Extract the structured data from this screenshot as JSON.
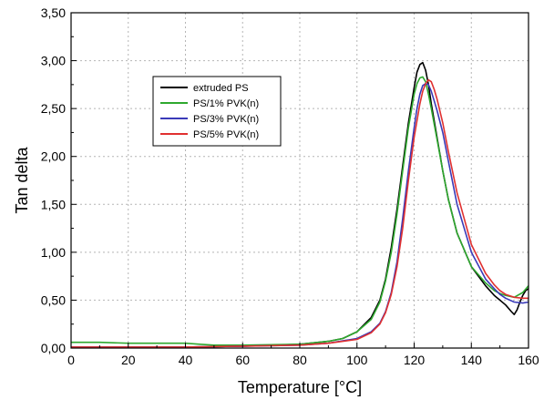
{
  "chart_data": {
    "type": "line",
    "title": "",
    "xlabel": "Temperature [°C]",
    "ylabel": "Tan delta",
    "xlim": [
      0,
      160
    ],
    "ylim": [
      0,
      3.5
    ],
    "x_ticks": [
      "0",
      "20",
      "40",
      "60",
      "80",
      "100",
      "120",
      "140",
      "160"
    ],
    "y_ticks": [
      "0,00",
      "0,50",
      "1,00",
      "1,50",
      "2,00",
      "2,50",
      "3,00",
      "3,50"
    ],
    "grid": true,
    "legend_position": "top-left",
    "series": [
      {
        "name": "extruded PS",
        "color": "#000000",
        "x": [
          0,
          20,
          40,
          60,
          80,
          90,
          95,
          100,
          105,
          108,
          110,
          112,
          114,
          116,
          118,
          120,
          121,
          122,
          123,
          124,
          125,
          126,
          128,
          130,
          132,
          135,
          140,
          145,
          148,
          150,
          152,
          154,
          155,
          156,
          157,
          158,
          159,
          160
        ],
        "y": [
          0.01,
          0.01,
          0.01,
          0.02,
          0.04,
          0.07,
          0.1,
          0.17,
          0.32,
          0.5,
          0.72,
          1.05,
          1.45,
          1.9,
          2.35,
          2.72,
          2.88,
          2.96,
          2.98,
          2.9,
          2.75,
          2.55,
          2.2,
          1.85,
          1.55,
          1.2,
          0.85,
          0.65,
          0.55,
          0.5,
          0.45,
          0.38,
          0.35,
          0.4,
          0.48,
          0.55,
          0.6,
          0.62
        ]
      },
      {
        "name": "PS/1% PVK(n)",
        "color": "#2ea82e",
        "x": [
          0,
          10,
          20,
          30,
          40,
          45,
          50,
          60,
          80,
          90,
          95,
          100,
          105,
          108,
          110,
          112,
          114,
          116,
          118,
          120,
          121,
          122,
          123,
          124,
          125,
          126,
          128,
          130,
          132,
          135,
          140,
          145,
          148,
          150,
          152,
          155,
          158,
          160
        ],
        "y": [
          0.06,
          0.06,
          0.05,
          0.05,
          0.05,
          0.04,
          0.03,
          0.03,
          0.04,
          0.07,
          0.1,
          0.17,
          0.3,
          0.48,
          0.7,
          1.0,
          1.4,
          1.85,
          2.3,
          2.65,
          2.76,
          2.82,
          2.83,
          2.78,
          2.65,
          2.5,
          2.18,
          1.85,
          1.55,
          1.2,
          0.85,
          0.68,
          0.6,
          0.57,
          0.55,
          0.53,
          0.58,
          0.65
        ]
      },
      {
        "name": "PS/3% PVK(n)",
        "color": "#3a3ab8",
        "x": [
          0,
          20,
          40,
          60,
          80,
          90,
          100,
          105,
          108,
          110,
          112,
          114,
          116,
          118,
          120,
          121,
          122,
          123,
          124,
          125,
          126,
          127,
          128,
          130,
          132,
          135,
          140,
          145,
          148,
          150,
          152,
          155,
          158,
          160
        ],
        "y": [
          0.01,
          0.01,
          0.01,
          0.02,
          0.03,
          0.05,
          0.1,
          0.17,
          0.26,
          0.38,
          0.58,
          0.9,
          1.35,
          1.85,
          2.3,
          2.5,
          2.65,
          2.74,
          2.76,
          2.75,
          2.68,
          2.58,
          2.48,
          2.25,
          1.95,
          1.5,
          1.0,
          0.72,
          0.62,
          0.56,
          0.52,
          0.48,
          0.47,
          0.48
        ]
      },
      {
        "name": "PS/5% PVK(n)",
        "color": "#e03030",
        "x": [
          0,
          20,
          40,
          60,
          80,
          90,
          100,
          105,
          108,
          110,
          112,
          114,
          116,
          118,
          120,
          122,
          123,
          124,
          125,
          126,
          127,
          128,
          130,
          132,
          135,
          140,
          145,
          148,
          150,
          152,
          155,
          158,
          160
        ],
        "y": [
          0.01,
          0.01,
          0.01,
          0.02,
          0.03,
          0.05,
          0.09,
          0.16,
          0.25,
          0.37,
          0.56,
          0.85,
          1.25,
          1.75,
          2.2,
          2.55,
          2.68,
          2.76,
          2.8,
          2.78,
          2.7,
          2.6,
          2.35,
          2.05,
          1.62,
          1.08,
          0.78,
          0.66,
          0.6,
          0.56,
          0.53,
          0.52,
          0.52
        ]
      }
    ]
  }
}
